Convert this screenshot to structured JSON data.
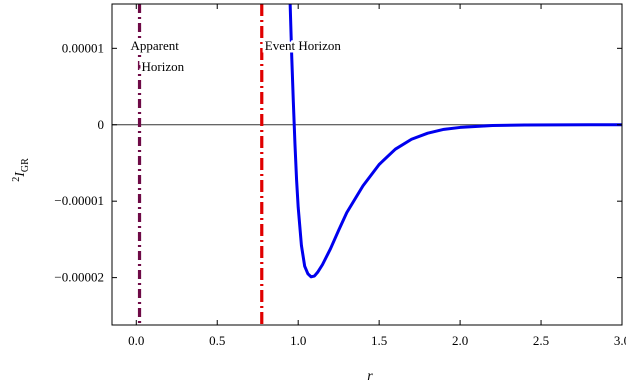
{
  "chart_data": {
    "type": "line",
    "title": "",
    "xlabel": "r",
    "ylabel_main": "I",
    "ylabel_super": "2",
    "ylabel_sub": "GR",
    "xlim": [
      -0.15,
      3.0
    ],
    "ylim": [
      -2.62e-05,
      1.58e-05
    ],
    "xticks": [
      {
        "value": 0.0,
        "label": "0.0"
      },
      {
        "value": 0.5,
        "label": "0.5"
      },
      {
        "value": 1.0,
        "label": "1.0"
      },
      {
        "value": 1.5,
        "label": "1.5"
      },
      {
        "value": 2.0,
        "label": "2.0"
      },
      {
        "value": 2.5,
        "label": "2.5"
      },
      {
        "value": 3.0,
        "label": "3.0"
      }
    ],
    "yticks": [
      {
        "value": 1e-05,
        "label": "0.00001"
      },
      {
        "value": 0.0,
        "label": "0"
      },
      {
        "value": -1e-05,
        "label": "−0.00001"
      },
      {
        "value": -2e-05,
        "label": "−0.00002"
      }
    ],
    "series": [
      {
        "color": "#0000ee",
        "x": [
          0.95,
          0.96,
          0.97,
          0.98,
          0.99,
          1.0,
          1.02,
          1.04,
          1.06,
          1.08,
          1.1,
          1.12,
          1.15,
          1.2,
          1.25,
          1.3,
          1.4,
          1.5,
          1.6,
          1.7,
          1.8,
          1.9,
          2.0,
          2.2,
          2.4,
          2.6,
          2.8,
          3.0
        ],
        "y": [
          1.6e-05,
          9e-06,
          3e-06,
          -2.5e-06,
          -7.2e-06,
          -1.08e-05,
          -1.58e-05,
          -1.85e-05,
          -1.95e-05,
          -1.99e-05,
          -1.98e-05,
          -1.93e-05,
          -1.83e-05,
          -1.62e-05,
          -1.38e-05,
          -1.15e-05,
          -8e-06,
          -5.2e-06,
          -3.2e-06,
          -1.9e-06,
          -1.1e-06,
          -6e-07,
          -3.5e-07,
          -1e-07,
          -3e-08,
          -1e-08,
          -2e-09,
          0.0
        ]
      }
    ],
    "vlines": [
      {
        "x": 0.02,
        "color": "#6e0a46",
        "dash": "9,4,2,4"
      },
      {
        "x": 0.775,
        "color": "#e00000",
        "dash": "12,4,2,4"
      }
    ],
    "annotations": [
      {
        "lines": [
          "Apparent",
          "Horizon"
        ],
        "x": 0.02,
        "y": 9.8e-06
      },
      {
        "lines": [
          "Event Horizon"
        ],
        "x": 0.775,
        "y": 9.8e-06
      }
    ]
  }
}
